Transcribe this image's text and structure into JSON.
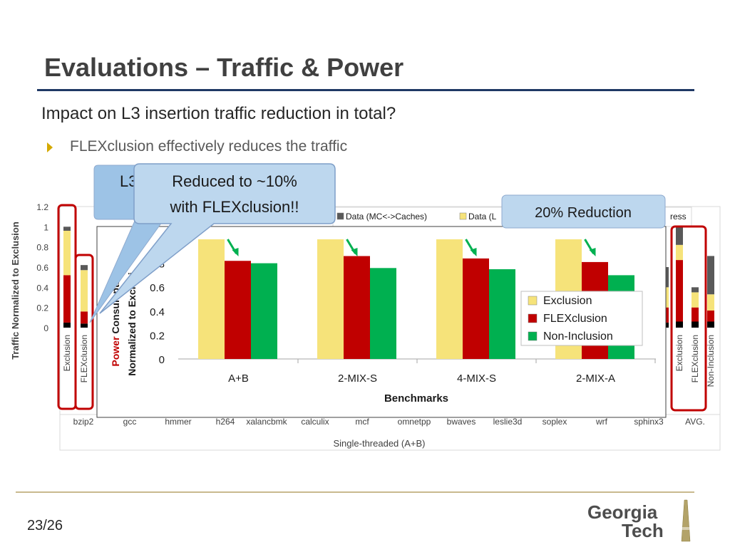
{
  "slide": {
    "title": "Evaluations – Traffic & Power",
    "question": "Impact on L3 insertion traffic reduction in total?",
    "bullet": "FLEXclusion effectively reduces the traffic",
    "page": "23/26",
    "logo_line1": "Georgia",
    "logo_line2": "Tech",
    "accent_color": "#1f3864",
    "bullet_color": "#d4a900"
  },
  "callouts": {
    "back_partial": "L3",
    "front_line1": "Reduced to ~10%",
    "front_line2": "with FLEXclusion!!",
    "reduction": "20% Reduction"
  },
  "chart_data": [
    {
      "type": "bar",
      "stacked": true,
      "ylabel": "Traffic Normalized to Exclusion",
      "xlabel": "Single-threaded (A+B)",
      "ylim": [
        0,
        1.2
      ],
      "yticks": [
        "0",
        "0.2",
        "0.4",
        "0.6",
        "0.8",
        "1",
        "1.2"
      ],
      "benchmarks": [
        "bzip2",
        "gcc",
        "hmmer",
        "h264",
        "xalancbmk",
        "calculix",
        "mcf",
        "omnetpp",
        "bwaves",
        "leslie3d",
        "soplex",
        "wrf",
        "sphinx3",
        "AVG."
      ],
      "legend_visible": [
        "Data (MC<->Caches)",
        "Data (L",
        "ress"
      ],
      "series_colors": [
        "#000000",
        "#c00000",
        "#f6e37a",
        "#595959"
      ],
      "visible_groups": [
        {
          "benchmark": "bzip2",
          "bars": [
            {
              "label": "Exclusion",
              "segments": [
                0.05,
                0.47,
                0.44,
                0.04
              ]
            },
            {
              "label": "FLEXclusion",
              "segments": [
                0.04,
                0.12,
                0.41,
                0.05
              ]
            }
          ]
        },
        {
          "benchmark": "AVG.",
          "bars": [
            {
              "label": "Exclusion",
              "segments": [
                0.06,
                0.61,
                0.15,
                0.18
              ]
            },
            {
              "label": "FLEXclusion",
              "segments": [
                0.06,
                0.14,
                0.15,
                0.05
              ]
            },
            {
              "label": "Non-Inclusion",
              "segments": [
                0.06,
                0.11,
                0.16,
                0.38
              ]
            }
          ]
        },
        {
          "benchmark": "sphinx3",
          "bars": [
            {
              "label": "",
              "segments": [
                0.05,
                0.15,
                0.2,
                0.2
              ]
            }
          ]
        }
      ]
    },
    {
      "type": "bar",
      "ylabel": "Power Consumption Normalized to Exclusion",
      "ylabel_visible_top": "Power Consumpti",
      "ylabel_visible_bottom": "Normalized to Exclusi",
      "xlabel": "Benchmarks",
      "categories": [
        "A+B",
        "2-MIX-S",
        "4-MIX-S",
        "2-MIX-A"
      ],
      "yticks": [
        "0",
        "0.2",
        "0.4",
        "0.6",
        "0.8"
      ],
      "ylim": [
        0,
        1.2
      ],
      "legend_position": "right",
      "series": [
        {
          "name": "Exclusion",
          "color": "#f6e37a",
          "values": [
            1.0,
            1.0,
            1.0,
            1.0
          ]
        },
        {
          "name": "FLEXclusion",
          "color": "#c00000",
          "values": [
            0.82,
            0.86,
            0.84,
            0.81
          ]
        },
        {
          "name": "Non-Inclusion",
          "color": "#00b050",
          "values": [
            0.8,
            0.76,
            0.75,
            0.7
          ]
        }
      ]
    }
  ]
}
